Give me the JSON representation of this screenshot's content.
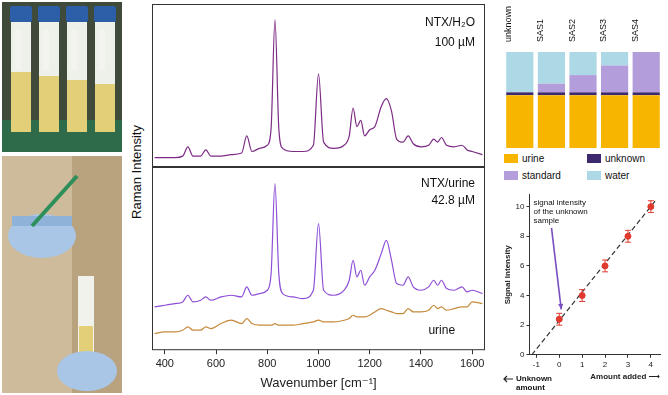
{
  "chart_data": [
    {
      "type": "line",
      "ylabel": "Raman Intensity",
      "annotations": [
        "NTX/H₂O",
        "100 µM"
      ],
      "x": [
        360,
        400,
        440,
        470,
        490,
        510,
        540,
        560,
        580,
        620,
        660,
        700,
        720,
        740,
        770,
        800,
        815,
        830,
        845,
        860,
        900,
        940,
        980,
        1000,
        1020,
        1060,
        1100,
        1120,
        1135,
        1150,
        1165,
        1180,
        1200,
        1220,
        1245,
        1265,
        1285,
        1305,
        1330,
        1350,
        1370,
        1400,
        1430,
        1450,
        1465,
        1480,
        1500,
        1530,
        1560,
        1580,
        1600,
        1640
      ],
      "series": [
        {
          "color": "#7d2c86",
          "values": [
            0.6,
            0.6,
            0.6,
            0.7,
            1.3,
            0.7,
            0.7,
            1.1,
            0.7,
            0.7,
            0.8,
            0.9,
            2.0,
            1.0,
            1.2,
            1.4,
            2.5,
            9.5,
            2.5,
            1.2,
            1.0,
            1.0,
            1.4,
            6.0,
            1.6,
            1.2,
            1.4,
            2.0,
            3.8,
            2.6,
            3.0,
            2.0,
            2.4,
            2.6,
            3.9,
            4.4,
            3.6,
            1.8,
            1.6,
            2.0,
            1.5,
            1.3,
            1.4,
            1.8,
            1.6,
            1.9,
            1.4,
            1.3,
            1.4,
            1.1,
            1.0,
            0.8
          ]
        }
      ],
      "xlim": [
        350,
        1650
      ],
      "ylim": [
        0,
        10.5
      ],
      "tick_labels": false
    },
    {
      "type": "line",
      "xlabel": "Wavenumber [cm⁻¹]",
      "annotations": [
        "NTX/urine",
        "42.8 µM",
        "urine"
      ],
      "x": [
        360,
        400,
        440,
        470,
        490,
        510,
        540,
        560,
        580,
        620,
        660,
        700,
        720,
        740,
        770,
        800,
        815,
        830,
        845,
        860,
        900,
        940,
        980,
        1000,
        1020,
        1060,
        1100,
        1120,
        1135,
        1150,
        1165,
        1180,
        1200,
        1220,
        1245,
        1265,
        1285,
        1305,
        1330,
        1350,
        1370,
        1400,
        1430,
        1450,
        1465,
        1480,
        1500,
        1530,
        1560,
        1580,
        1600,
        1640
      ],
      "series": [
        {
          "color": "#8e4fd6",
          "values": [
            2.6,
            2.7,
            2.8,
            2.9,
            3.3,
            2.9,
            3.0,
            3.2,
            3.0,
            3.2,
            3.3,
            3.2,
            3.8,
            3.3,
            3.4,
            3.6,
            4.6,
            10.0,
            4.6,
            3.4,
            3.2,
            3.1,
            3.6,
            7.6,
            3.6,
            3.3,
            3.6,
            4.2,
            5.4,
            4.4,
            4.8,
            3.9,
            4.4,
            4.8,
            5.8,
            6.6,
            5.4,
            4.0,
            3.9,
            4.4,
            3.8,
            3.6,
            3.8,
            4.2,
            3.9,
            4.2,
            3.7,
            3.6,
            3.8,
            3.5,
            3.6,
            3.4
          ]
        },
        {
          "color": "#c58a3c",
          "values": [
            1.0,
            1.1,
            1.1,
            1.2,
            1.4,
            1.2,
            1.2,
            1.4,
            1.3,
            1.6,
            1.8,
            1.6,
            1.9,
            1.6,
            1.5,
            1.5,
            1.5,
            1.6,
            1.5,
            1.5,
            1.5,
            1.6,
            1.7,
            1.8,
            1.7,
            1.7,
            1.8,
            1.9,
            2.1,
            2.0,
            2.0,
            2.0,
            2.1,
            2.3,
            2.5,
            2.4,
            2.3,
            2.2,
            2.2,
            2.5,
            2.3,
            2.3,
            2.4,
            2.7,
            2.5,
            2.6,
            2.4,
            2.5,
            2.6,
            2.6,
            2.9,
            2.8
          ]
        }
      ],
      "xlim": [
        350,
        1650
      ],
      "xticks": [
        400,
        600,
        800,
        1000,
        1200,
        1400,
        1600
      ],
      "ylim": [
        0,
        11
      ],
      "tick_labels": "x"
    },
    {
      "type": "bar",
      "stacked": true,
      "categories": [
        "unknown",
        "SAS1",
        "SAS2",
        "SAS3",
        "SAS4"
      ],
      "series": [
        {
          "name": "urine",
          "color": "#f7b500",
          "values": [
            5.5,
            5.5,
            5.5,
            5.5,
            5.5
          ]
        },
        {
          "name": "unknown",
          "color": "#3d2a6e",
          "values": [
            0.3,
            0.3,
            0.3,
            0.3,
            0.3
          ]
        },
        {
          "name": "standard",
          "color": "#b39ddb",
          "values": [
            0,
            0.9,
            1.8,
            2.8,
            4.2
          ]
        },
        {
          "name": "water",
          "color": "#add8e6",
          "values": [
            4.2,
            3.3,
            2.4,
            1.4,
            0
          ]
        }
      ],
      "ylim": [
        0,
        10
      ],
      "tick_labels": "x",
      "legend": "bottom"
    },
    {
      "type": "scatter",
      "xlabel": "Amount added ⟶",
      "ylabel": "Signal Intensity",
      "annotations": [
        "signal intensity of the unknown sample",
        "Unknown amount"
      ],
      "x": [
        0,
        1,
        2,
        3,
        4
      ],
      "series": [
        {
          "color": "#e03a2f",
          "marker": "circle",
          "values": [
            2.4,
            4.0,
            6.0,
            8.0,
            10.0
          ],
          "error": [
            0.4,
            0.4,
            0.4,
            0.4,
            0.4
          ]
        },
        {
          "type": "line",
          "color": "#333333",
          "line_style": "dashed",
          "x": [
            -1.2,
            4.2
          ],
          "values": [
            0,
            10.4
          ]
        }
      ],
      "xlim": [
        -1.3,
        4.4
      ],
      "xticks": [
        -1,
        0,
        1,
        2,
        3,
        4
      ],
      "ylim": [
        0,
        10.8
      ],
      "yticks": [
        0,
        2,
        4,
        6,
        8,
        10
      ],
      "grid": false
    }
  ]
}
